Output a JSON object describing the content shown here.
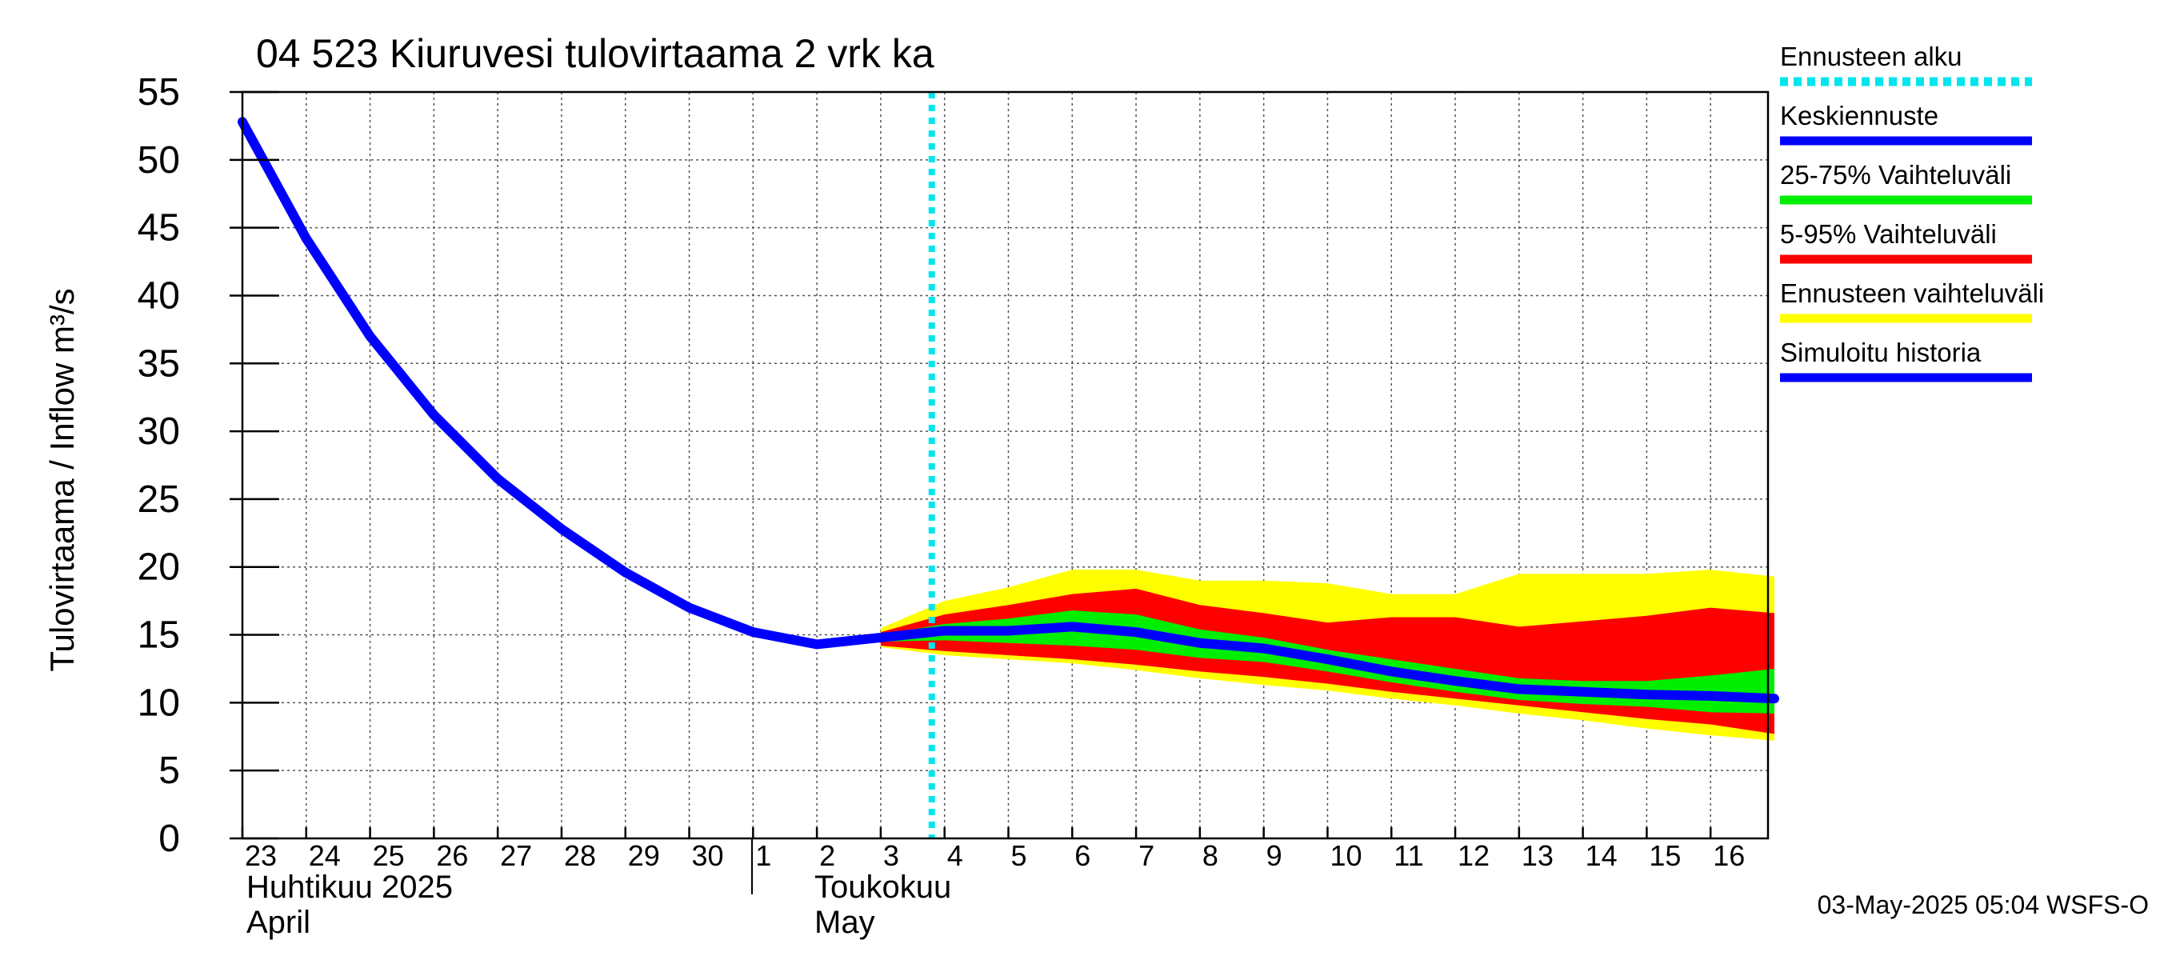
{
  "chart_data": {
    "type": "area",
    "title": "04 523 Kiuruvesi tulovirtaama 2 vrk ka",
    "ylabel": "Tulovirtaama / Inflow    m³/s",
    "ylim": [
      0,
      55
    ],
    "yticks": [
      0,
      5,
      10,
      15,
      20,
      25,
      30,
      35,
      40,
      45,
      50,
      55
    ],
    "grid": true,
    "legend_position": "right",
    "x_tick_labels": [
      "23",
      "24",
      "25",
      "26",
      "27",
      "28",
      "29",
      "30",
      "1",
      "2",
      "3",
      "4",
      "5",
      "6",
      "7",
      "8",
      "9",
      "10",
      "11",
      "12",
      "13",
      "14",
      "15",
      "16"
    ],
    "month_labels": {
      "april_fi": "Huhtikuu  2025",
      "april_en": "April",
      "may_fi": "Toukokuu",
      "may_en": "May"
    },
    "forecast_start_x": 10.8,
    "series": [
      {
        "name": "Simuloitu historia",
        "color": "#0000ff",
        "x": [
          0,
          1,
          2,
          3,
          4,
          5,
          6,
          7,
          8,
          9,
          10
        ],
        "y": [
          52.8,
          44.2,
          37.0,
          31.2,
          26.5,
          22.8,
          19.6,
          17.0,
          15.2,
          14.3,
          14.8
        ]
      },
      {
        "name": "Keskiennuste",
        "color": "#0000ff",
        "x": [
          10,
          11,
          12,
          13,
          14,
          15,
          16,
          17,
          18,
          19,
          20,
          21,
          22,
          23,
          24
        ],
        "y": [
          14.8,
          15.3,
          15.3,
          15.6,
          15.2,
          14.4,
          14.0,
          13.2,
          12.3,
          11.6,
          11.0,
          10.8,
          10.6,
          10.5,
          10.3
        ]
      }
    ],
    "bands": [
      {
        "name": "Ennusteen vaihteluväli",
        "color": "#ffff00",
        "x": [
          10,
          11,
          12,
          13,
          14,
          15,
          16,
          17,
          18,
          19,
          20,
          21,
          22,
          23,
          24
        ],
        "upper": [
          15.5,
          17.5,
          18.5,
          19.8,
          19.8,
          19.0,
          19.0,
          18.8,
          18.0,
          18.0,
          19.5,
          19.5,
          19.5,
          19.8,
          19.3
        ],
        "lower": [
          14.1,
          13.5,
          13.2,
          12.9,
          12.4,
          11.8,
          11.3,
          10.9,
          10.3,
          9.8,
          9.2,
          8.7,
          8.1,
          7.6,
          7.2
        ]
      },
      {
        "name": "5-95% Vaihteluväli",
        "color": "#ff0000",
        "x": [
          10,
          11,
          12,
          13,
          14,
          15,
          16,
          17,
          18,
          19,
          20,
          21,
          22,
          23,
          24
        ],
        "upper": [
          15.2,
          16.5,
          17.2,
          18.0,
          18.4,
          17.2,
          16.6,
          15.9,
          16.3,
          16.3,
          15.6,
          16.0,
          16.4,
          17.0,
          16.6
        ],
        "lower": [
          14.2,
          13.8,
          13.5,
          13.2,
          12.8,
          12.3,
          11.9,
          11.4,
          10.8,
          10.3,
          9.8,
          9.3,
          8.8,
          8.4,
          7.7
        ]
      },
      {
        "name": "25-75% Vaihteluväli",
        "color": "#00ee00",
        "x": [
          10,
          11,
          12,
          13,
          14,
          15,
          16,
          17,
          18,
          19,
          20,
          21,
          22,
          23,
          24
        ],
        "upper": [
          15.0,
          15.8,
          16.2,
          16.8,
          16.5,
          15.4,
          14.8,
          13.9,
          13.2,
          12.5,
          11.8,
          11.6,
          11.6,
          12.0,
          12.5
        ],
        "lower": [
          14.5,
          14.6,
          14.4,
          14.2,
          13.9,
          13.3,
          13.0,
          12.3,
          11.5,
          10.8,
          10.2,
          9.9,
          9.7,
          9.3,
          9.2
        ]
      }
    ],
    "legend": [
      {
        "label": "Ennusteen alku",
        "color": "#00e5ee",
        "style": "dotted"
      },
      {
        "label": "Keskiennuste",
        "color": "#0000ff",
        "style": "solid"
      },
      {
        "label": "25-75% Vaihteluväli",
        "color": "#00ee00",
        "style": "solid"
      },
      {
        "label": "5-95% Vaihteluväli",
        "color": "#ff0000",
        "style": "solid"
      },
      {
        "label": "Ennusteen vaihteluväli",
        "color": "#ffff00",
        "style": "solid"
      },
      {
        "label": "Simuloitu historia",
        "color": "#0000ff",
        "style": "solid"
      }
    ],
    "timestamp": "03-May-2025 05:04 WSFS-O"
  }
}
